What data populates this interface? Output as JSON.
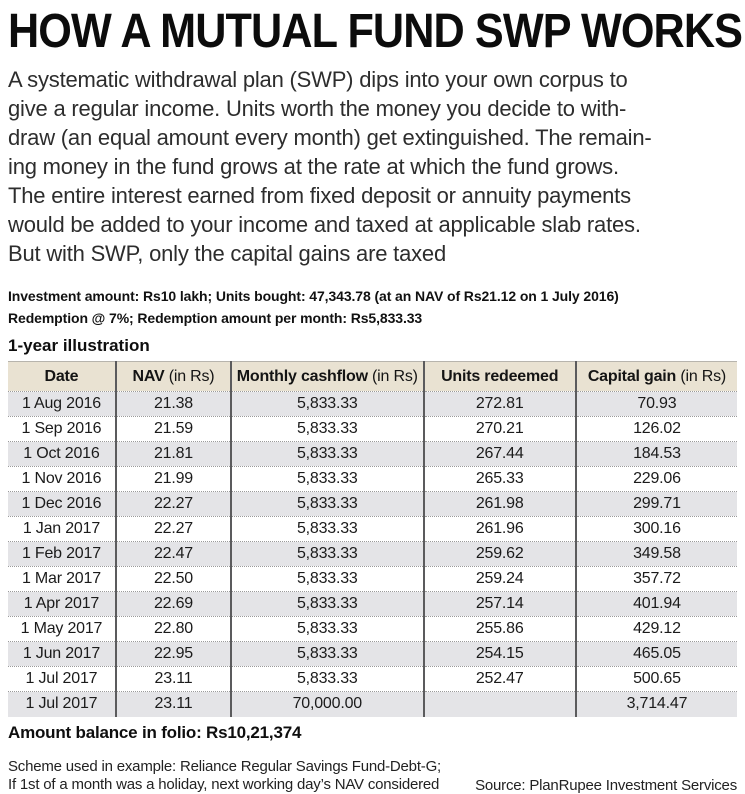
{
  "header": {
    "title": "HOW A MUTUAL FUND SWP WORKS"
  },
  "intro": {
    "lines": [
      "A systematic withdrawal plan (SWP) dips into your own corpus to",
      "give a regular income. Units worth the money you decide to with-",
      "draw (an equal amount every month) get extinguished. The remain-",
      "ing money in the fund grows at the rate at which the fund grows.",
      "The entire interest earned from fixed deposit or annuity payments",
      "would be added to your income and taxed at applicable slab rates.",
      "But with SWP, only the capital gains are taxed"
    ]
  },
  "params": {
    "line1": "Investment amount: Rs10 lakh; Units bought: 47,343.78 (at an NAV of Rs21.12 on 1 July 2016)",
    "line2": "Redemption @ 7%; Redemption amount per month: Rs5,833.33"
  },
  "table": {
    "caption": "1-year illustration",
    "headers": [
      {
        "label": "Date",
        "suffix": ""
      },
      {
        "label": "NAV",
        "suffix": " (in Rs)"
      },
      {
        "label": "Monthly cashflow",
        "suffix": " (in Rs)"
      },
      {
        "label": "Units redeemed",
        "suffix": ""
      },
      {
        "label": "Capital gain",
        "suffix": " (in Rs)"
      }
    ],
    "rows": [
      [
        "1 Aug 2016",
        "21.38",
        "5,833.33",
        "272.81",
        "70.93"
      ],
      [
        "1 Sep 2016",
        "21.59",
        "5,833.33",
        "270.21",
        "126.02"
      ],
      [
        "1 Oct 2016",
        "21.81",
        "5,833.33",
        "267.44",
        "184.53"
      ],
      [
        "1 Nov 2016",
        "21.99",
        "5,833.33",
        "265.33",
        "229.06"
      ],
      [
        "1 Dec 2016",
        "22.27",
        "5,833.33",
        "261.98",
        "299.71"
      ],
      [
        "1 Jan 2017",
        "22.27",
        "5,833.33",
        "261.96",
        "300.16"
      ],
      [
        "1 Feb 2017",
        "22.47",
        "5,833.33",
        "259.62",
        "349.58"
      ],
      [
        "1 Mar 2017",
        "22.50",
        "5,833.33",
        "259.24",
        "357.72"
      ],
      [
        "1 Apr 2017",
        "22.69",
        "5,833.33",
        "257.14",
        "401.94"
      ],
      [
        "1 May 2017",
        "22.80",
        "5,833.33",
        "255.86",
        "429.12"
      ],
      [
        "1 Jun 2017",
        "22.95",
        "5,833.33",
        "254.15",
        "465.05"
      ],
      [
        "1 Jul 2017",
        "23.11",
        "5,833.33",
        "252.47",
        "500.65"
      ],
      [
        "1 Jul 2017",
        "23.11",
        "70,000.00",
        "",
        "3,714.47"
      ]
    ]
  },
  "summary": {
    "balance": "Amount balance in folio: Rs10,21,374"
  },
  "footer": {
    "note_line1": "Scheme used in example: Reliance Regular Savings Fund-Debt-G;",
    "note_line2": "If 1st of a month was a holiday, next working day’s NAV considered",
    "source": "Source: PlanRupee Investment Services"
  },
  "colors": {
    "table_header_bg": "#e9e2d2",
    "row_alt_bg": "#e4e4e7",
    "divider": "#5b5b5d",
    "text": "#1a1a1a"
  }
}
